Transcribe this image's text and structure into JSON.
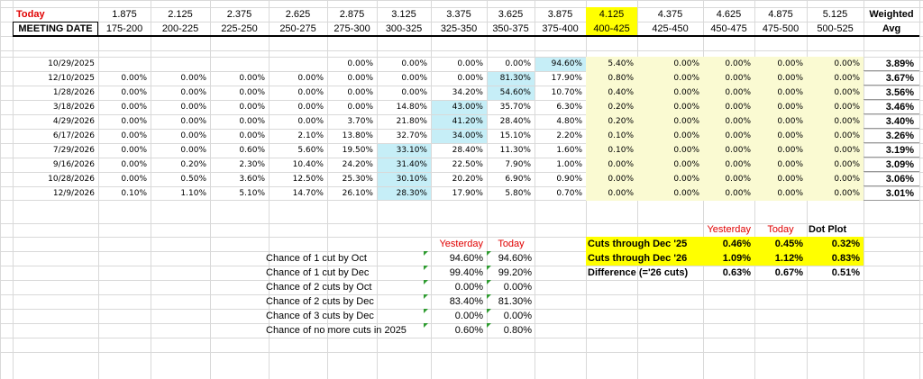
{
  "header": {
    "today_label": "Today",
    "meeting_date_label": "MEETING DATE",
    "weighted_label": "Weighted",
    "avg_label": "Avg",
    "midpoints": [
      "1.875",
      "2.125",
      "2.375",
      "2.625",
      "2.875",
      "3.125",
      "3.375",
      "3.625",
      "3.875",
      "4.125",
      "4.375",
      "4.625",
      "4.875",
      "5.125"
    ],
    "ranges": [
      "175-200",
      "200-225",
      "225-250",
      "250-275",
      "275-300",
      "300-325",
      "325-350",
      "350-375",
      "375-400",
      "400-425",
      "425-450",
      "450-475",
      "475-500",
      "500-525"
    ]
  },
  "rows": [
    {
      "date": "10/29/2025",
      "cells": [
        "",
        "",
        "",
        "",
        "0.00%",
        "0.00%",
        "0.00%",
        "0.00%",
        "94.60%",
        "5.40%",
        "0.00%",
        "0.00%",
        "0.00%",
        "0.00%"
      ],
      "avg": "3.89%"
    },
    {
      "date": "12/10/2025",
      "cells": [
        "0.00%",
        "0.00%",
        "0.00%",
        "0.00%",
        "0.00%",
        "0.00%",
        "0.00%",
        "81.30%",
        "17.90%",
        "0.80%",
        "0.00%",
        "0.00%",
        "0.00%",
        "0.00%"
      ],
      "avg": "3.67%"
    },
    {
      "date": "1/28/2026",
      "cells": [
        "0.00%",
        "0.00%",
        "0.00%",
        "0.00%",
        "0.00%",
        "0.00%",
        "34.20%",
        "54.60%",
        "10.70%",
        "0.40%",
        "0.00%",
        "0.00%",
        "0.00%",
        "0.00%"
      ],
      "avg": "3.56%"
    },
    {
      "date": "3/18/2026",
      "cells": [
        "0.00%",
        "0.00%",
        "0.00%",
        "0.00%",
        "0.00%",
        "14.80%",
        "43.00%",
        "35.70%",
        "6.30%",
        "0.20%",
        "0.00%",
        "0.00%",
        "0.00%",
        "0.00%"
      ],
      "avg": "3.46%"
    },
    {
      "date": "4/29/2026",
      "cells": [
        "0.00%",
        "0.00%",
        "0.00%",
        "0.00%",
        "3.70%",
        "21.80%",
        "41.20%",
        "28.40%",
        "4.80%",
        "0.20%",
        "0.00%",
        "0.00%",
        "0.00%",
        "0.00%"
      ],
      "avg": "3.40%"
    },
    {
      "date": "6/17/2026",
      "cells": [
        "0.00%",
        "0.00%",
        "0.00%",
        "2.10%",
        "13.80%",
        "32.70%",
        "34.00%",
        "15.10%",
        "2.20%",
        "0.10%",
        "0.00%",
        "0.00%",
        "0.00%",
        "0.00%"
      ],
      "avg": "3.26%"
    },
    {
      "date": "7/29/2026",
      "cells": [
        "0.00%",
        "0.00%",
        "0.60%",
        "5.60%",
        "19.50%",
        "33.10%",
        "28.40%",
        "11.30%",
        "1.60%",
        "0.10%",
        "0.00%",
        "0.00%",
        "0.00%",
        "0.00%"
      ],
      "avg": "3.19%"
    },
    {
      "date": "9/16/2026",
      "cells": [
        "0.00%",
        "0.20%",
        "2.30%",
        "10.40%",
        "24.20%",
        "31.40%",
        "22.50%",
        "7.90%",
        "1.00%",
        "0.00%",
        "0.00%",
        "0.00%",
        "0.00%",
        "0.00%"
      ],
      "avg": "3.09%"
    },
    {
      "date": "10/28/2026",
      "cells": [
        "0.00%",
        "0.50%",
        "3.60%",
        "12.50%",
        "25.30%",
        "30.10%",
        "20.20%",
        "6.90%",
        "0.90%",
        "0.00%",
        "0.00%",
        "0.00%",
        "0.00%",
        "0.00%"
      ],
      "avg": "3.06%"
    },
    {
      "date": "12/9/2026",
      "cells": [
        "0.10%",
        "1.10%",
        "5.10%",
        "14.70%",
        "26.10%",
        "28.30%",
        "17.90%",
        "5.80%",
        "0.70%",
        "0.00%",
        "0.00%",
        "0.00%",
        "0.00%",
        "0.00%"
      ],
      "avg": "3.01%"
    }
  ],
  "highlight_cols": [
    7,
    8,
    6,
    6,
    6,
    6,
    5,
    5,
    5,
    5
  ],
  "chances": {
    "yesterday_label": "Yesterday",
    "today_label": "Today",
    "rows": [
      {
        "label": "Chance of 1 cut by Oct",
        "yesterday": "94.60%",
        "today": "94.60%"
      },
      {
        "label": "Chance of 1 cut by Dec",
        "yesterday": "99.40%",
        "today": "99.20%"
      },
      {
        "label": "Chance of 2 cuts by Oct",
        "yesterday": "0.00%",
        "today": "0.00%"
      },
      {
        "label": "Chance of 2 cuts by Dec",
        "yesterday": "83.40%",
        "today": "81.30%"
      },
      {
        "label": "Chance of 3 cuts by Dec",
        "yesterday": "0.00%",
        "today": "0.00%"
      },
      {
        "label": "Chance of no more cuts in 2025",
        "yesterday": "0.60%",
        "today": "0.80%"
      }
    ]
  },
  "cuts": {
    "yesterday_label": "Yesterday",
    "today_label": "Today",
    "dot_plot_label": "Dot Plot",
    "rows": [
      {
        "label": "Cuts through Dec '25",
        "yesterday": "0.46%",
        "today": "0.45%",
        "dot_plot": "0.32%"
      },
      {
        "label": "Cuts through Dec '26",
        "yesterday": "1.09%",
        "today": "1.12%",
        "dot_plot": "0.83%"
      },
      {
        "label": "Difference (='26 cuts)",
        "yesterday": "0.63%",
        "today": "0.67%",
        "dot_plot": "0.51%"
      }
    ]
  },
  "colors": {
    "highlight_blue": "#c6eef7",
    "current_rate_yellow": "#ffff00",
    "light_yellow": "#fafad2",
    "red_text": "#e00000",
    "gridline": "#d9d9d9"
  }
}
